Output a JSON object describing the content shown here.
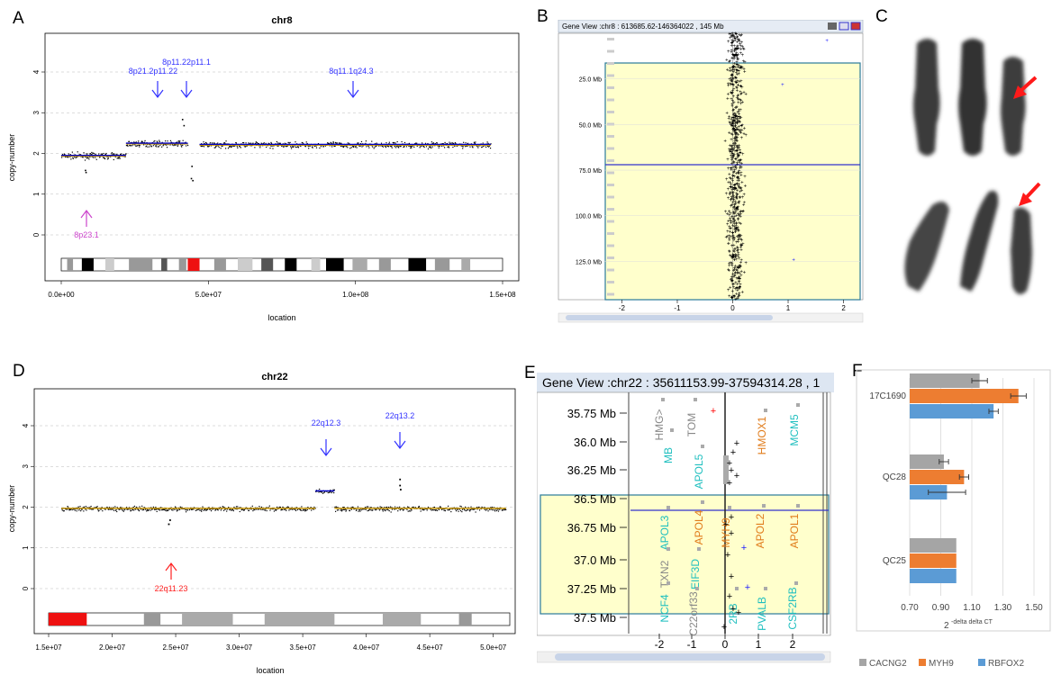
{
  "panels": [
    "A",
    "B",
    "C",
    "D",
    "E",
    "F"
  ],
  "colors": {
    "cn_points": "#000000",
    "segment": "#0000cc",
    "median": "#cc9900",
    "arrow_amp": "#3333ff",
    "arrow_del_a": "#cc44cc",
    "arrow_del_d": "#ff2222",
    "gv_bg": "#ffffcc",
    "gv_red": "#ff0000",
    "gv_blue": "#2222ff",
    "cacng2": "#a5a5a5",
    "myh9": "#ed7d31",
    "rbfox2": "#5b9bd5"
  },
  "chart_data": [
    {
      "panel": "A",
      "type": "scatter",
      "title": "chr8",
      "xlabel": "location",
      "ylabel": "copy-number",
      "xlim": [
        0,
        150000000
      ],
      "ylim": [
        -0.2,
        4.5
      ],
      "xticks": [
        "0.0e+00",
        "5.0e+07",
        "1.0e+08",
        "1.5e+08"
      ],
      "yticks": [
        "0",
        "1",
        "2",
        "3",
        "4"
      ],
      "segments": [
        {
          "x_start": 0,
          "x_end": 22000000,
          "value": 1.95
        },
        {
          "x_start": 22000000,
          "x_end": 43000000,
          "value": 2.25
        },
        {
          "x_start": 47000000,
          "x_end": 146000000,
          "value": 2.22
        }
      ],
      "annotations": [
        {
          "label": "8p21.2p11.22",
          "x": 32000000,
          "kind": "amp"
        },
        {
          "label": "8p11.22p11.1",
          "x": 40000000,
          "kind": "amp"
        },
        {
          "label": "8q11.1q24.3",
          "x": 95000000,
          "kind": "amp"
        },
        {
          "label": "8p23.1",
          "x": 8000000,
          "kind": "del"
        }
      ]
    },
    {
      "panel": "B",
      "type": "scatter",
      "title": "Gene View :chr8 : 613685.62-146364022 , 145 Mb",
      "xlim": [
        -2.3,
        2.3
      ],
      "xticks": [
        "-2",
        "-1",
        "0",
        "1",
        "2"
      ],
      "yticks": [
        "25.0 Mb",
        "50.0 Mb",
        "75.0 Mb",
        "100.0 Mb",
        "125.0 Mb"
      ],
      "ylim_mb": [
        0,
        146
      ]
    },
    {
      "panel": "D",
      "type": "scatter",
      "title": "chr22",
      "xlabel": "location",
      "ylabel": "copy-number",
      "xlim": [
        15000000,
        51300000
      ],
      "ylim": [
        -0.2,
        4.5
      ],
      "xticks": [
        "1.5e+07",
        "2.0e+07",
        "2.5e+07",
        "3.0e+07",
        "3.5e+07",
        "4.0e+07",
        "4.5e+07",
        "5.0e+07"
      ],
      "yticks": [
        "0",
        "1",
        "2",
        "3",
        "4"
      ],
      "segments": [
        {
          "x_start": 16000000,
          "x_end": 36000000,
          "value": 1.97
        },
        {
          "x_start": 36000000,
          "x_end": 37500000,
          "value": 2.4
        },
        {
          "x_start": 37500000,
          "x_end": 51000000,
          "value": 1.97
        }
      ],
      "annotations": [
        {
          "label": "22q12.3",
          "x": 36700000,
          "kind": "amp"
        },
        {
          "label": "22q13.2",
          "x": 42600000,
          "kind": "amp"
        },
        {
          "label": "22q11.23",
          "x": 24400000,
          "kind": "del"
        }
      ]
    },
    {
      "panel": "E",
      "type": "scatter",
      "title": "Gene View :chr22 : 35611153.99-37594314.28 , 1",
      "xticks": [
        "-2",
        "-1",
        "0",
        "1",
        "2"
      ],
      "yticks": [
        "35.75 Mb",
        "36.0 Mb",
        "36.25 Mb",
        "36.5 Mb",
        "36.75 Mb",
        "37.0 Mb",
        "37.25 Mb",
        "37.5 Mb"
      ],
      "genes": [
        {
          "name": "HMG>",
          "color": "gray"
        },
        {
          "name": "TOM",
          "color": "gray"
        },
        {
          "name": "MB",
          "color": "teal"
        },
        {
          "name": "APOL5",
          "color": "teal"
        },
        {
          "name": "HMOX1",
          "color": "orange"
        },
        {
          "name": "MCM5",
          "color": "teal"
        },
        {
          "name": "APOL3",
          "color": "teal"
        },
        {
          "name": "APOL4",
          "color": "orange"
        },
        {
          "name": "APOL2",
          "color": "orange"
        },
        {
          "name": "APOL1",
          "color": "orange"
        },
        {
          "name": "TXN2",
          "color": "gray"
        },
        {
          "name": "EIF3D",
          "color": "teal"
        },
        {
          "name": "MYH9",
          "color": "orange"
        },
        {
          "name": "NCF4",
          "color": "teal"
        },
        {
          "name": "C22orf33",
          "color": "gray"
        },
        {
          "name": "CSF2RB",
          "color": "teal"
        },
        {
          "name": "PVALB",
          "color": "teal"
        },
        {
          "name": "2RB",
          "color": "teal"
        }
      ]
    },
    {
      "panel": "F",
      "type": "bar",
      "orientation": "horizontal",
      "categories": [
        "17C1690",
        "QC28",
        "QC25"
      ],
      "xlabel_base": "2",
      "xlabel_sup": "-delta delta CT",
      "xlim": [
        0.7,
        1.5
      ],
      "xticks": [
        "0.70",
        "0.90",
        "1.10",
        "1.30",
        "1.50"
      ],
      "legend_position": "bottom",
      "series": [
        {
          "name": "CACNG2",
          "values": [
            1.15,
            0.92,
            1.0
          ],
          "errors": [
            0.05,
            0.03,
            0.0
          ]
        },
        {
          "name": "MYH9",
          "values": [
            1.4,
            1.05,
            1.0
          ],
          "errors": [
            0.05,
            0.03,
            0.0
          ]
        },
        {
          "name": "RBFOX2",
          "values": [
            1.24,
            0.94,
            1.0
          ],
          "errors": [
            0.03,
            0.12,
            0.0
          ]
        }
      ]
    }
  ]
}
